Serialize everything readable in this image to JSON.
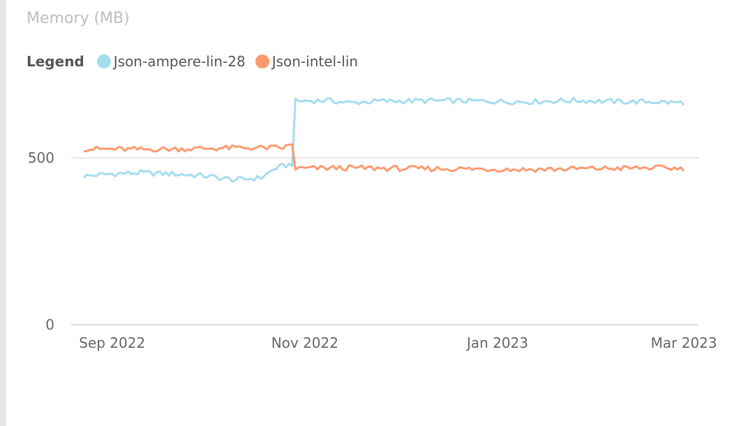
{
  "chart_data": {
    "type": "line",
    "title": "Memory (MB)",
    "legend_title": "Legend",
    "legend_position": "top-left",
    "x_start": "2022-08-23",
    "x_end": "2023-03-01",
    "ylim": [
      0,
      1000
    ],
    "y_ticks": [
      0,
      500
    ],
    "x_ticks": [
      {
        "label": "Sep 2022",
        "date": "2022-09-01"
      },
      {
        "label": "Nov 2022",
        "date": "2022-11-01"
      },
      {
        "label": "Jan 2023",
        "date": "2023-01-01"
      },
      {
        "label": "Mar 2023",
        "date": "2023-03-01"
      }
    ],
    "grid": true,
    "series": [
      {
        "name": "Json-ampere-lin-28",
        "color": "#a5dcee",
        "points": [
          {
            "x": "2022-08-23",
            "y": 445
          },
          {
            "x": "2022-09-01",
            "y": 452
          },
          {
            "x": "2022-09-10",
            "y": 455
          },
          {
            "x": "2022-09-20",
            "y": 452
          },
          {
            "x": "2022-09-30",
            "y": 446
          },
          {
            "x": "2022-10-10",
            "y": 434
          },
          {
            "x": "2022-10-18",
            "y": 440
          },
          {
            "x": "2022-10-23",
            "y": 470
          },
          {
            "x": "2022-10-28",
            "y": 482
          },
          {
            "x": "2022-10-29",
            "y": 670
          },
          {
            "x": "2022-11-08",
            "y": 672
          },
          {
            "x": "2022-11-15",
            "y": 665
          },
          {
            "x": "2022-11-25",
            "y": 670
          },
          {
            "x": "2022-12-10",
            "y": 671
          },
          {
            "x": "2022-12-25",
            "y": 670
          },
          {
            "x": "2023-01-10",
            "y": 668
          },
          {
            "x": "2023-01-25",
            "y": 672
          },
          {
            "x": "2023-02-10",
            "y": 668
          },
          {
            "x": "2023-02-20",
            "y": 668
          },
          {
            "x": "2023-03-01",
            "y": 665
          }
        ]
      },
      {
        "name": "Json-intel-lin",
        "color": "#fd9a6e",
        "points": [
          {
            "x": "2022-08-23",
            "y": 527
          },
          {
            "x": "2022-09-10",
            "y": 525
          },
          {
            "x": "2022-09-25",
            "y": 527
          },
          {
            "x": "2022-10-10",
            "y": 530
          },
          {
            "x": "2022-10-25",
            "y": 530
          },
          {
            "x": "2022-10-28",
            "y": 540
          },
          {
            "x": "2022-10-29",
            "y": 468
          },
          {
            "x": "2022-11-15",
            "y": 470
          },
          {
            "x": "2022-12-01",
            "y": 468
          },
          {
            "x": "2022-12-20",
            "y": 467
          },
          {
            "x": "2023-01-10",
            "y": 465
          },
          {
            "x": "2023-02-01",
            "y": 468
          },
          {
            "x": "2023-02-20",
            "y": 470
          },
          {
            "x": "2023-03-01",
            "y": 468
          }
        ]
      }
    ]
  }
}
